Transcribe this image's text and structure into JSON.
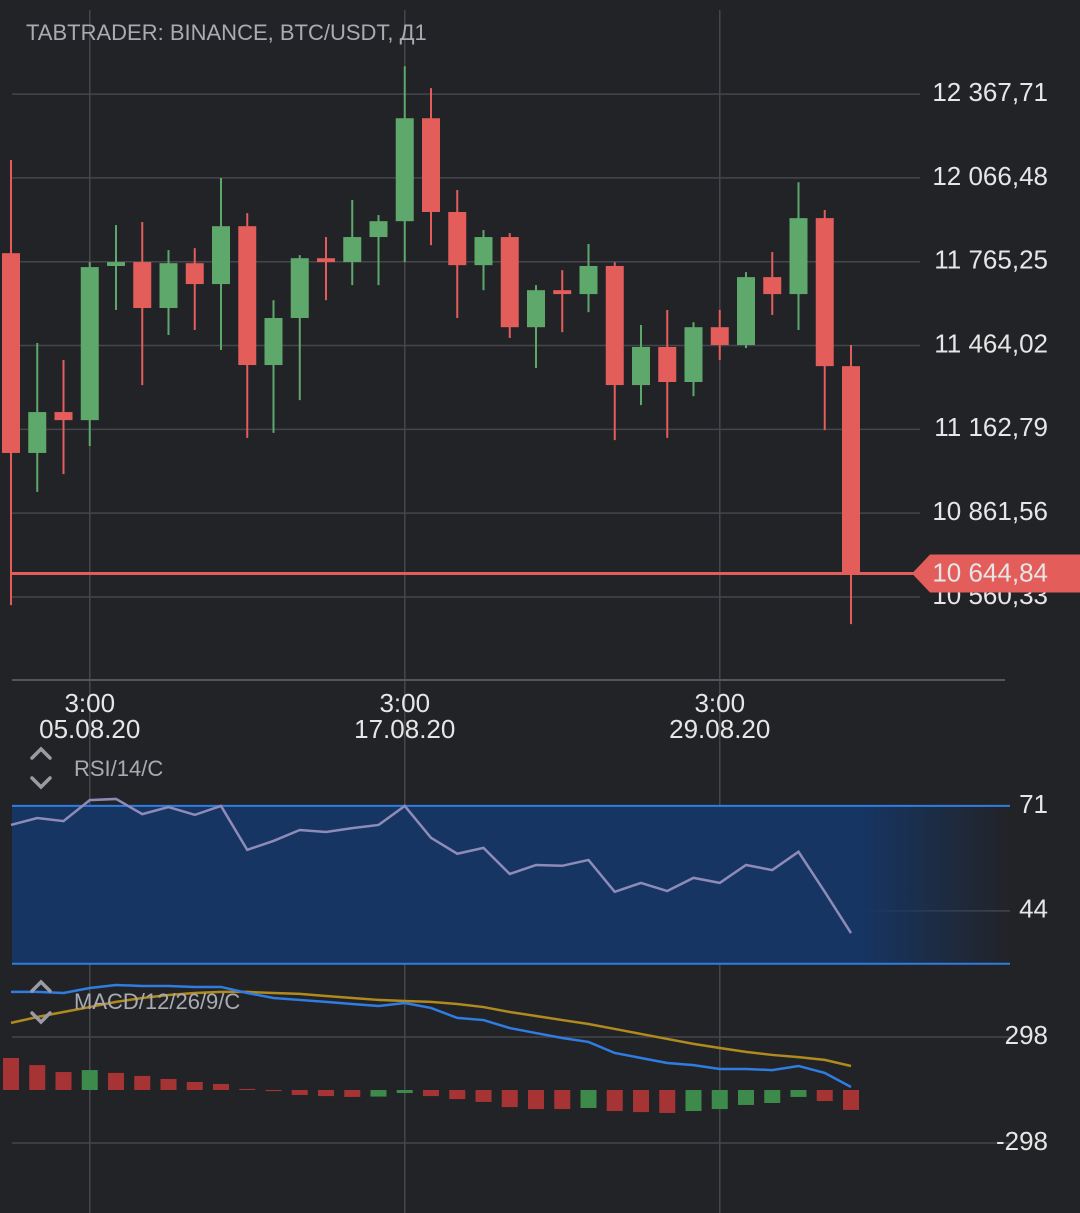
{
  "chart_data": [
    {
      "type": "candlestick",
      "title": "TABTRADER: BINANCE, BTC/USDT, Д1",
      "categories": [
        null,
        null,
        null,
        [
          "3:00",
          "05.08.20"
        ],
        null,
        null,
        null,
        null,
        null,
        null,
        null,
        null,
        null,
        null,
        null,
        [
          "3:00",
          "17.08.20"
        ],
        null,
        null,
        null,
        null,
        null,
        null,
        null,
        null,
        null,
        null,
        null,
        [
          "3:00",
          "29.08.20"
        ],
        null,
        null,
        null,
        null,
        null
      ],
      "open": [
        11796,
        11078,
        11225,
        11196,
        11750,
        11764,
        11599,
        11760,
        11685,
        11893,
        11394,
        11563,
        11778,
        11764,
        11854,
        11911,
        12281,
        11944,
        11753,
        11854,
        11530,
        11663,
        11649,
        11750,
        11322,
        11459,
        11333,
        11530,
        11466,
        11710,
        11649,
        11922,
        11390
      ],
      "high": [
        12131,
        11473,
        11412,
        11764,
        11897,
        11908,
        11807,
        11814,
        12066,
        11940,
        11627,
        11789,
        11854,
        11987,
        11933,
        12468,
        12389,
        12023,
        11879,
        11868,
        11681,
        11735,
        11829,
        11764,
        11538,
        11592,
        11548,
        11592,
        11728,
        11800,
        12051,
        11951,
        11466
      ],
      "low": [
        10531,
        10938,
        11002,
        11103,
        11592,
        11322,
        11502,
        11520,
        11448,
        11132,
        11150,
        11268,
        11627,
        11681,
        11681,
        11764,
        11825,
        11563,
        11663,
        11491,
        11383,
        11512,
        11584,
        11124,
        11250,
        11132,
        11282,
        11412,
        11455,
        11574,
        11520,
        11160,
        10463
      ],
      "close": [
        11078,
        11225,
        11196,
        11746,
        11764,
        11599,
        11760,
        11685,
        11893,
        11394,
        11563,
        11778,
        11764,
        11854,
        11911,
        12281,
        11944,
        11753,
        11854,
        11530,
        11663,
        11649,
        11750,
        11322,
        11459,
        11333,
        11530,
        11466,
        11710,
        11649,
        11922,
        11390,
        10644.84
      ],
      "up_color": "#5fa86b",
      "down_color": "#e35d5b",
      "ylim": [
        10262,
        12670
      ],
      "yticks": [
        {
          "value": 12367.71,
          "label": "12 367,71"
        },
        {
          "value": 12066.48,
          "label": "12 066,48"
        },
        {
          "value": 11765.25,
          "label": "11 765,25"
        },
        {
          "value": 11464.02,
          "label": "11 464,02"
        },
        {
          "value": 11162.79,
          "label": "11 162,79"
        },
        {
          "value": 10861.56,
          "label": "10 861,56"
        },
        {
          "value": 10560.33,
          "label": "10 560,33"
        }
      ],
      "grid": true,
      "last_price": 10644.84,
      "last_price_label": "10 644,84"
    },
    {
      "type": "line",
      "title": "RSI/14/C",
      "values": [
        66.1,
        67.9,
        67.1,
        72.5,
        72.8,
        68.9,
        70.7,
        68.7,
        71.0,
        59.7,
        62.0,
        64.8,
        64.3,
        65.3,
        66.1,
        71.0,
        62.8,
        58.7,
        60.2,
        53.5,
        55.8,
        55.6,
        57.1,
        48.9,
        51.2,
        49.1,
        52.5,
        51.2,
        55.8,
        54.5,
        59.2,
        48.9,
        38.3
      ],
      "color": "#8f8bb8",
      "band": [
        30.4,
        71
      ],
      "band_color": "#163563",
      "ylim": [
        27.5,
        75.1
      ],
      "yticks": [
        71,
        44
      ],
      "grid": true
    },
    {
      "type": "macd",
      "title": "MACD/12/26/9/C",
      "macd": [
        551,
        551,
        545,
        573,
        590,
        584,
        584,
        579,
        579,
        545,
        517,
        506,
        495,
        483,
        472,
        489,
        461,
        405,
        393,
        348,
        320,
        292,
        270,
        208,
        180,
        152,
        140,
        118,
        118,
        112,
        135,
        96,
        17
      ],
      "signal": [
        377,
        410,
        438,
        466,
        495,
        517,
        534,
        545,
        551,
        551,
        545,
        540,
        528,
        517,
        506,
        500,
        495,
        483,
        466,
        438,
        416,
        393,
        371,
        343,
        315,
        287,
        259,
        236,
        214,
        197,
        185,
        169,
        135
      ],
      "histogram": [
        180,
        140,
        101,
        112,
        96,
        79,
        62,
        45,
        34,
        6,
        -6,
        -28,
        -34,
        -39,
        -37,
        -17,
        -34,
        -51,
        -67,
        -96,
        -107,
        -107,
        -101,
        -118,
        -124,
        -129,
        -118,
        -107,
        -84,
        -73,
        -39,
        -62,
        -112
      ],
      "macd_color": "#2f7de1",
      "signal_color": "#b08a1e",
      "up_color": "#3d8a4b",
      "down_color": "#a63434",
      "ylim": [
        -691,
        618
      ],
      "yticks": [
        298,
        -298
      ],
      "grid": true
    }
  ]
}
